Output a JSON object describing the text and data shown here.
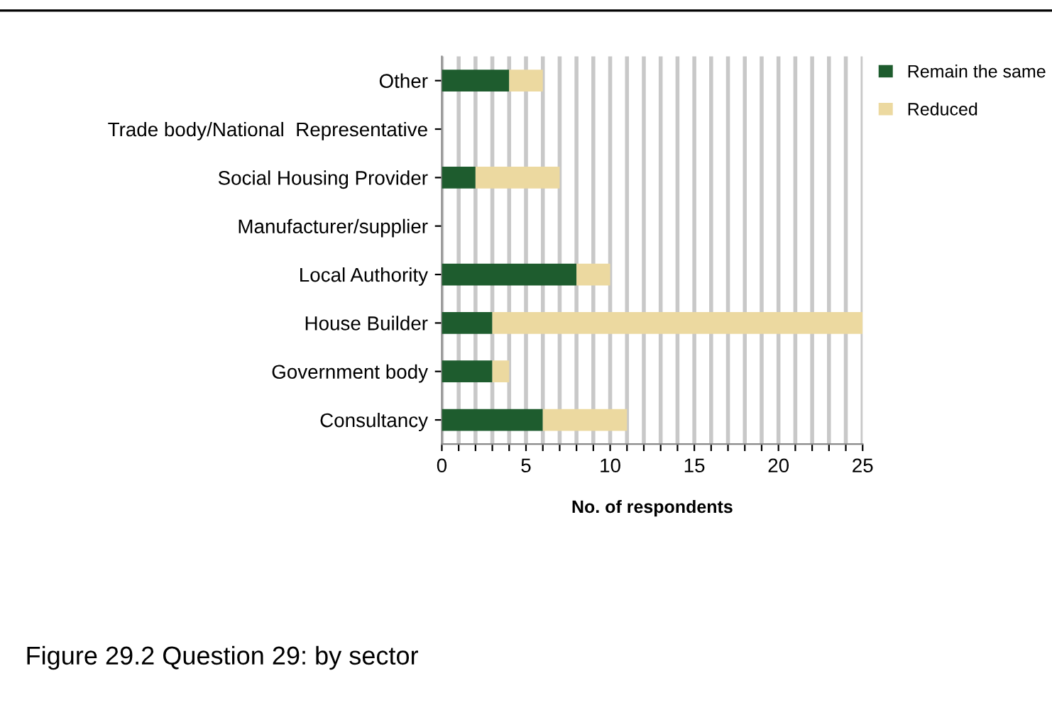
{
  "chart_data": {
    "type": "bar",
    "orientation": "horizontal",
    "stacked": true,
    "title": "Figure 29.2 Question 29: by sector",
    "xlabel": "No. of respondents",
    "categories": [
      "Other",
      "Trade body/National  Representative",
      "Social Housing Provider",
      "Manufacturer/supplier",
      "Local Authority",
      "House Builder",
      "Government body",
      "Consultancy"
    ],
    "series": [
      {
        "name": "Remain the same",
        "color": "#1e5c2e",
        "values": [
          4,
          0,
          2,
          0,
          8,
          3,
          3,
          6
        ]
      },
      {
        "name": "Reduced",
        "color": "#ecd9a0",
        "values": [
          2,
          0,
          5,
          0,
          2,
          22,
          1,
          5
        ]
      }
    ],
    "xlim": [
      0,
      25
    ],
    "xticks": [
      0,
      {
        "value": 1,
        "label": null
      },
      {
        "value": 2,
        "label": null
      },
      {
        "value": 3,
        "label": null
      },
      {
        "value": 4,
        "label": null
      },
      5,
      {
        "value": 6,
        "label": null
      },
      {
        "value": 7,
        "label": null
      },
      {
        "value": 8,
        "label": null
      },
      {
        "value": 9,
        "label": null
      },
      10,
      {
        "value": 11,
        "label": null
      },
      {
        "value": 12,
        "label": null
      },
      {
        "value": 13,
        "label": null
      },
      {
        "value": 14,
        "label": null
      },
      15,
      {
        "value": 16,
        "label": null
      },
      {
        "value": 17,
        "label": null
      },
      {
        "value": 18,
        "label": null
      },
      {
        "value": 19,
        "label": null
      },
      20,
      {
        "value": 21,
        "label": null
      },
      {
        "value": 22,
        "label": null
      },
      {
        "value": 23,
        "label": null
      },
      {
        "value": 24,
        "label": null
      },
      25
    ],
    "grid": "x",
    "legend": "top right"
  }
}
